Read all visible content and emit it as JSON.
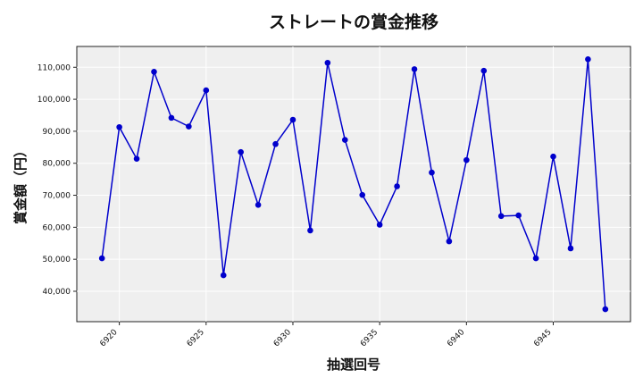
{
  "chart_data": {
    "type": "line",
    "title": "ストレートの賞金推移",
    "xlabel": "抽選回号",
    "ylabel": "賞金額（円）",
    "x": [
      6919,
      6920,
      6921,
      6922,
      6923,
      6924,
      6925,
      6926,
      6927,
      6928,
      6929,
      6930,
      6931,
      6932,
      6933,
      6934,
      6935,
      6936,
      6937,
      6938,
      6939,
      6940,
      6941,
      6942,
      6943,
      6944,
      6945,
      6946,
      6947,
      6948
    ],
    "series": [
      {
        "values": [
          50300,
          91300,
          81400,
          108600,
          94200,
          91500,
          102800,
          45000,
          83500,
          67000,
          86000,
          93600,
          59000,
          111400,
          87300,
          70100,
          60800,
          72800,
          109400,
          77100,
          55600,
          81000,
          108900,
          63500,
          63700,
          50300,
          82100,
          53400,
          112500,
          34400
        ],
        "color": "#0000cc"
      }
    ],
    "xticks": [
      6920,
      6925,
      6930,
      6935,
      6940,
      6945
    ],
    "yticks": [
      "40,000",
      "50,000",
      "60,000",
      "70,000",
      "80,000",
      "90,000",
      "100,000",
      "110,000"
    ],
    "yticks_values": [
      40000,
      50000,
      60000,
      70000,
      80000,
      90000,
      100000,
      110000
    ],
    "xlim": [
      6917.55,
      6949.45
    ],
    "ylim": [
      30500,
      116500
    ],
    "grid": true,
    "background_color": "#efefef"
  }
}
